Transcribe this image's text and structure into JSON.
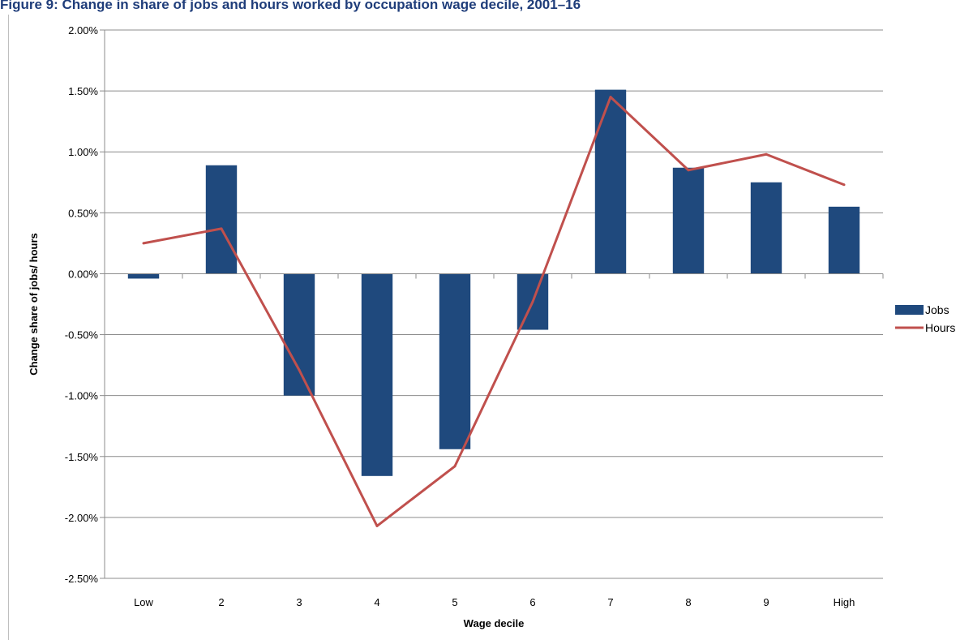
{
  "figure": {
    "title": "Figure 9: Change in share of jobs and hours worked by occupation wage decile, 2001–16"
  },
  "colors": {
    "jobs": "#1f497d",
    "hours": "#c0504d",
    "grid": "#8c8c8c"
  },
  "chart_data": {
    "type": "bar",
    "title": "",
    "xlabel": "Wage decile",
    "ylabel": "Change share of jobs/ hours",
    "categories": [
      "Low",
      "2",
      "3",
      "4",
      "5",
      "6",
      "7",
      "8",
      "9",
      "High"
    ],
    "ylim": [
      -2.5,
      2.0
    ],
    "yticks": [
      2.0,
      1.5,
      1.0,
      0.5,
      0.0,
      -0.5,
      -1.0,
      -1.5,
      -2.0,
      -2.5
    ],
    "ytick_labels": [
      "2.00%",
      "1.50%",
      "1.00%",
      "0.50%",
      "0.00%",
      "-0.50%",
      "-1.00%",
      "-1.50%",
      "-2.00%",
      "-2.50%"
    ],
    "grid": true,
    "legend_position": "right",
    "series": [
      {
        "name": "Jobs",
        "type": "bar",
        "values": [
          -0.04,
          0.89,
          -1.0,
          -1.66,
          -1.44,
          -0.46,
          1.51,
          0.87,
          0.75,
          0.55
        ]
      },
      {
        "name": "Hours",
        "type": "line",
        "values": [
          0.25,
          0.37,
          -0.79,
          -2.07,
          -1.58,
          -0.23,
          1.45,
          0.85,
          0.98,
          0.73
        ]
      }
    ]
  }
}
